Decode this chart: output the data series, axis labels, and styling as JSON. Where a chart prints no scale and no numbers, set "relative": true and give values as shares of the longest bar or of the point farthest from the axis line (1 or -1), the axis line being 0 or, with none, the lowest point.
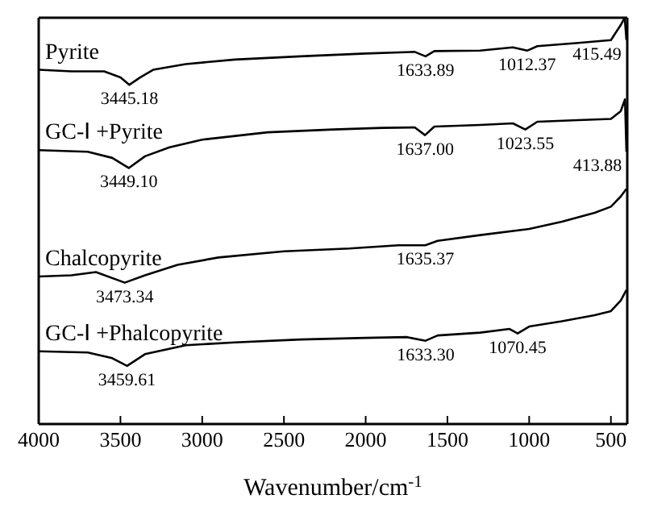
{
  "chart_data": {
    "type": "line",
    "relative": true,
    "xlabel": "Wavenumber/cm$^{-1}$",
    "xlim": [
      4000,
      400
    ],
    "xticks": [
      4000,
      3500,
      3000,
      2500,
      2000,
      1500,
      1000,
      500
    ],
    "marker": "none",
    "series": [
      {
        "name": "Pyrite",
        "color": "#000000",
        "x": [
          4000,
          3800,
          3600,
          3500,
          3445.18,
          3380,
          3300,
          3100,
          2800,
          2400,
          2000,
          1700,
          1633.89,
          1580,
          1300,
          1100,
          1012.37,
          950,
          700,
          500,
          440,
          415.49,
          405
        ],
        "values": [
          0.872,
          0.868,
          0.868,
          0.853,
          0.835,
          0.853,
          0.872,
          0.886,
          0.897,
          0.905,
          0.912,
          0.916,
          0.905,
          0.918,
          0.919,
          0.927,
          0.919,
          0.93,
          0.938,
          0.945,
          0.982,
          1.0,
          0.945
        ]
      },
      {
        "name": "GC-Ⅰ +Pyrite",
        "color": "#000000",
        "x": [
          4000,
          3700,
          3550,
          3449.1,
          3350,
          3200,
          3000,
          2600,
          2200,
          1900,
          1700,
          1637.0,
          1580,
          1300,
          1100,
          1023.55,
          950,
          700,
          500,
          440,
          413.88,
          405
        ],
        "values": [
          0.674,
          0.67,
          0.655,
          0.63,
          0.659,
          0.681,
          0.7,
          0.718,
          0.725,
          0.729,
          0.73,
          0.711,
          0.732,
          0.736,
          0.74,
          0.725,
          0.744,
          0.748,
          0.751,
          0.77,
          0.799,
          0.67
        ]
      },
      {
        "name": "Chalcopyrite",
        "color": "#000000",
        "x": [
          4000,
          3800,
          3650,
          3473.34,
          3350,
          3150,
          2900,
          2500,
          2100,
          1800,
          1635.37,
          1560,
          1300,
          1000,
          800,
          600,
          500,
          440,
          405
        ],
        "values": [
          0.363,
          0.366,
          0.374,
          0.348,
          0.366,
          0.392,
          0.41,
          0.425,
          0.432,
          0.44,
          0.44,
          0.451,
          0.465,
          0.48,
          0.498,
          0.52,
          0.535,
          0.56,
          0.579
        ]
      },
      {
        "name": "GC-Ⅰ +Phalcopyrite",
        "color": "#000000",
        "x": [
          4000,
          3700,
          3550,
          3459.61,
          3350,
          3100,
          2800,
          2400,
          2000,
          1750,
          1633.3,
          1560,
          1300,
          1120,
          1070.45,
          1000,
          800,
          600,
          500,
          440,
          405
        ],
        "values": [
          0.179,
          0.176,
          0.162,
          0.143,
          0.172,
          0.194,
          0.201,
          0.208,
          0.212,
          0.214,
          0.205,
          0.218,
          0.225,
          0.234,
          0.223,
          0.24,
          0.253,
          0.268,
          0.278,
          0.304,
          0.33
        ]
      }
    ],
    "annotations": [
      {
        "text": "3445.18",
        "x": 3445.18,
        "y": 0.835
      },
      {
        "text": "1633.89",
        "x": 1633.89,
        "y": 0.905
      },
      {
        "text": "1012.37",
        "x": 1012.37,
        "y": 0.919
      },
      {
        "text": "415.49",
        "x": 415.49,
        "y": 0.945
      },
      {
        "text": "3449.10",
        "x": 3449.1,
        "y": 0.63
      },
      {
        "text": "1637.00",
        "x": 1637.0,
        "y": 0.711
      },
      {
        "text": "1023.55",
        "x": 1023.55,
        "y": 0.725
      },
      {
        "text": "413.88",
        "x": 413.88,
        "y": 0.67
      },
      {
        "text": "3473.34",
        "x": 3473.34,
        "y": 0.348
      },
      {
        "text": "1635.37",
        "x": 1635.37,
        "y": 0.44
      },
      {
        "text": "3459.61",
        "x": 3459.61,
        "y": 0.143
      },
      {
        "text": "1633.30",
        "x": 1633.3,
        "y": 0.205
      },
      {
        "text": "1070.45",
        "x": 1070.45,
        "y": 0.223
      }
    ]
  }
}
